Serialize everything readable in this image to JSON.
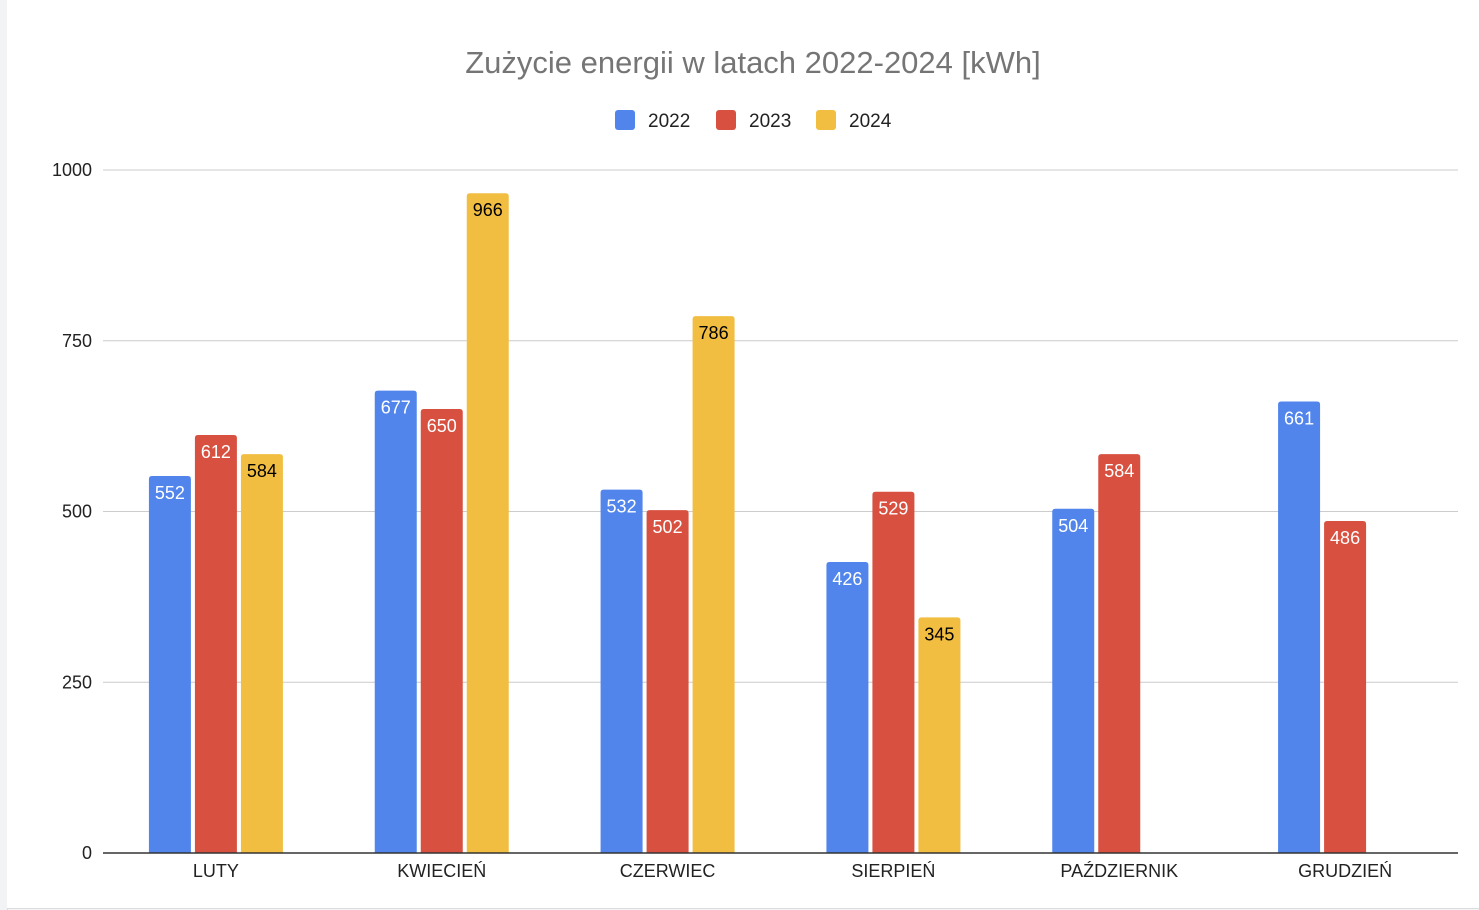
{
  "chart_data": {
    "type": "bar",
    "title": "Zużycie energii w latach 2022-2024 [kWh]",
    "xlabel": "",
    "ylabel": "",
    "categories": [
      "LUTY",
      "KWIECIEŃ",
      "CZERWIEC",
      "SIERPIEŃ",
      "PAŹDZIERNIK",
      "GRUDZIEŃ"
    ],
    "series": [
      {
        "name": "2022",
        "color": "#5185EC",
        "label_color": "#ffffff",
        "values": [
          552,
          677,
          532,
          426,
          504,
          661
        ]
      },
      {
        "name": "2023",
        "color": "#D85140",
        "label_color": "#ffffff",
        "values": [
          612,
          650,
          502,
          529,
          584,
          486
        ]
      },
      {
        "name": "2024",
        "color": "#F1BE42",
        "label_color": "#000000",
        "values": [
          584,
          966,
          786,
          345,
          null,
          null
        ]
      }
    ],
    "ylim": [
      0,
      1000
    ],
    "yticks": [
      0,
      250,
      500,
      750,
      1000
    ],
    "grid": true,
    "legend_position": "top-center",
    "data_labels": true
  }
}
